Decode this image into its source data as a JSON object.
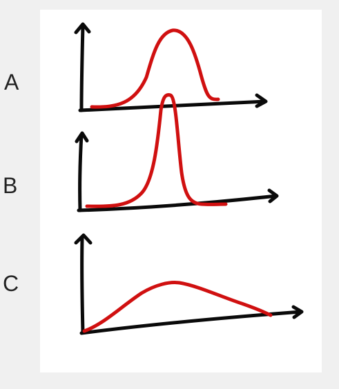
{
  "labels": {
    "a": "A",
    "b": "B",
    "c": "C"
  },
  "colors": {
    "page_background": "#f0f0f0",
    "panel_background": "#ffffff",
    "axis": "#0a0a0a",
    "curve": "#d01010"
  },
  "graphs": [
    {
      "id": "A",
      "shape": "symmetric bell curve, moderately wide"
    },
    {
      "id": "B",
      "shape": "tall narrow peak"
    },
    {
      "id": "C",
      "shape": "low wide right-skewed hump"
    }
  ]
}
